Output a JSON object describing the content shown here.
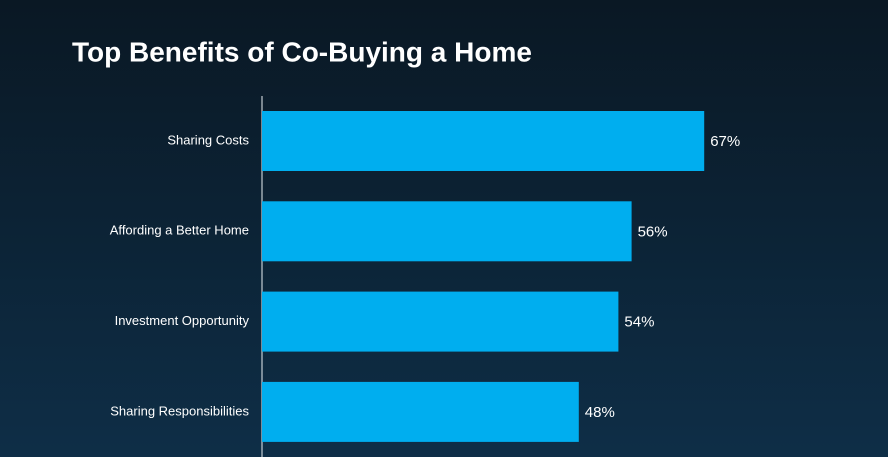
{
  "chart_data": {
    "type": "bar",
    "orientation": "horizontal",
    "title": "Top Benefits of Co-Buying a Home",
    "categories": [
      "Sharing Costs",
      "Affording a Better Home",
      "Investment Opportunity",
      "Sharing Responsibilities"
    ],
    "values": [
      67,
      56,
      54,
      48
    ],
    "value_labels": [
      "67%",
      "56%",
      "54%",
      "48%"
    ],
    "color": "#00aeef",
    "xlim": [
      0,
      100
    ]
  }
}
